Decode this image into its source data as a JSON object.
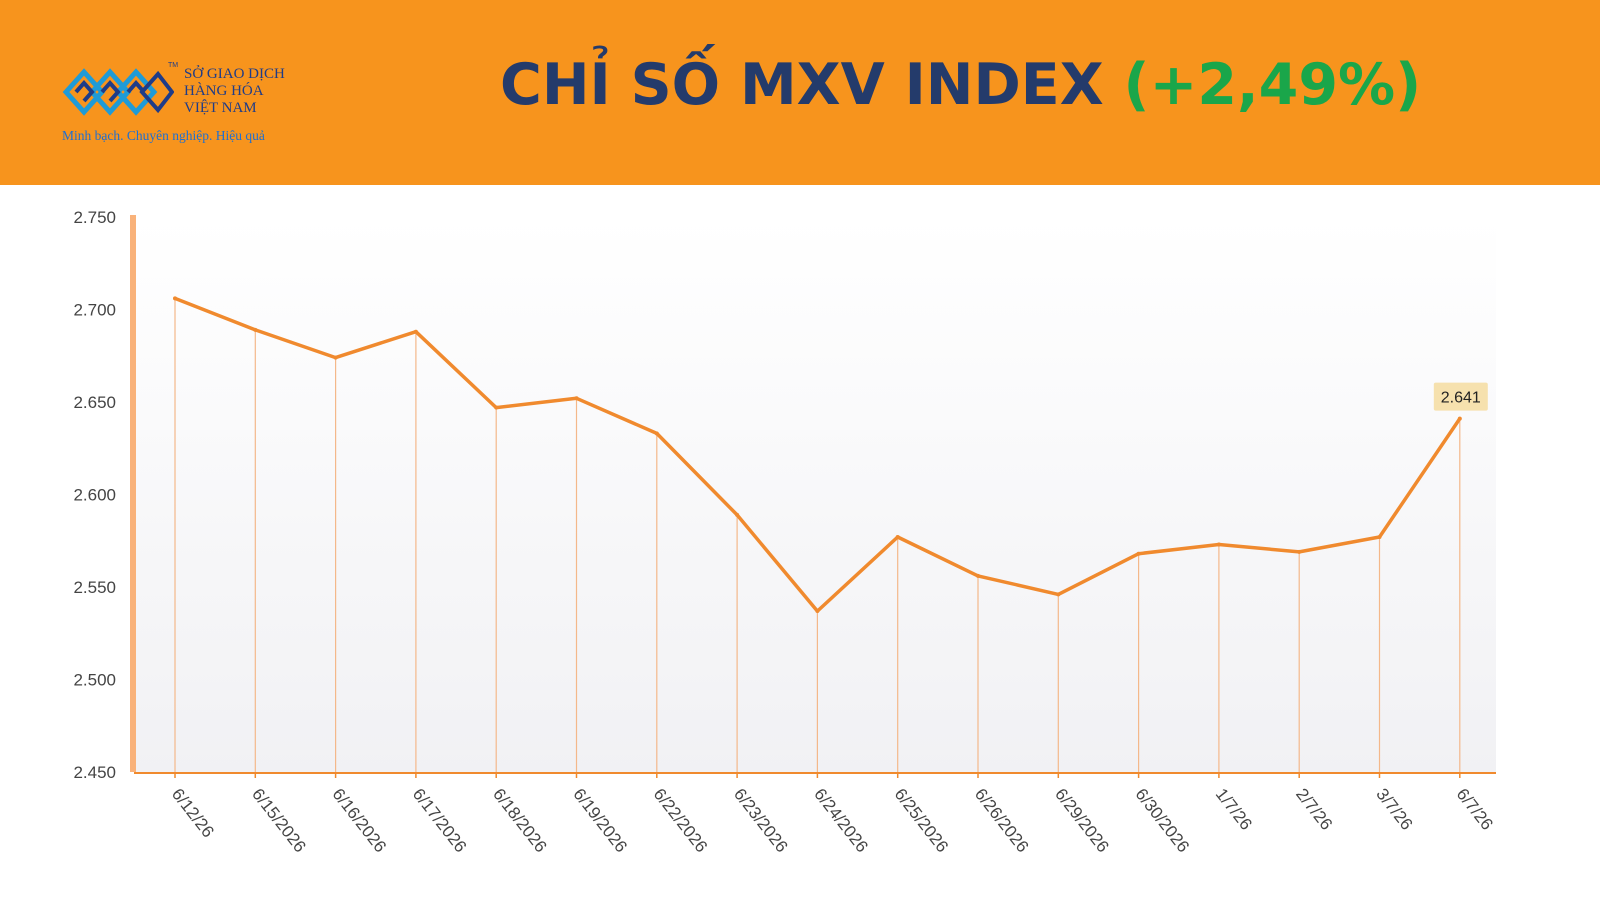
{
  "header": {
    "logo": {
      "name_lines": [
        "SỞ GIAO DỊCH",
        "HÀNG HÓA",
        "VIỆT NAM"
      ],
      "tm": "TM",
      "slogan": "Minh bạch. Chuyên nghiệp. Hiệu quả",
      "colors": {
        "primary": "#1f3c88",
        "accent": "#1f9bd7"
      }
    },
    "title_main": "CHỈ SỐ MXV INDEX",
    "title_change": "(+2,49%)",
    "colors": {
      "background": "#f7941d",
      "title": "#243b6b",
      "change": "#1aa64a"
    }
  },
  "chart_data": {
    "type": "line",
    "title": "",
    "xlabel": "",
    "ylabel": "",
    "categories": [
      "6/12/26",
      "6/15/2026",
      "6/16/2026",
      "6/17/2026",
      "6/18/2026",
      "6/19/2026",
      "6/22/2026",
      "6/23/2026",
      "6/24/2026",
      "6/25/2026",
      "6/26/2026",
      "6/29/2026",
      "6/30/2026",
      "1/7/26",
      "2/7/26",
      "3/7/26",
      "6/7/26"
    ],
    "values": [
      2706,
      2689,
      2674,
      2688,
      2647,
      2652,
      2633,
      2589,
      2537,
      2577,
      2556,
      2546,
      2568,
      2573,
      2569,
      2577,
      2641
    ],
    "ylim": [
      2450,
      2750
    ],
    "yticks": [
      2450,
      2500,
      2550,
      2600,
      2650,
      2700,
      2750
    ],
    "ytick_labels": [
      "2.450",
      "2.500",
      "2.550",
      "2.600",
      "2.650",
      "2.700",
      "2.750"
    ],
    "last_value_label": "2.641",
    "drop_lines": true,
    "legend": "none",
    "colors": {
      "line": "#f08a2e",
      "drop_line": "#f4b88a",
      "axis": "#f08a2e",
      "label_box": "#f6e1ae",
      "y_axis_bar": "#f9b27a"
    }
  }
}
